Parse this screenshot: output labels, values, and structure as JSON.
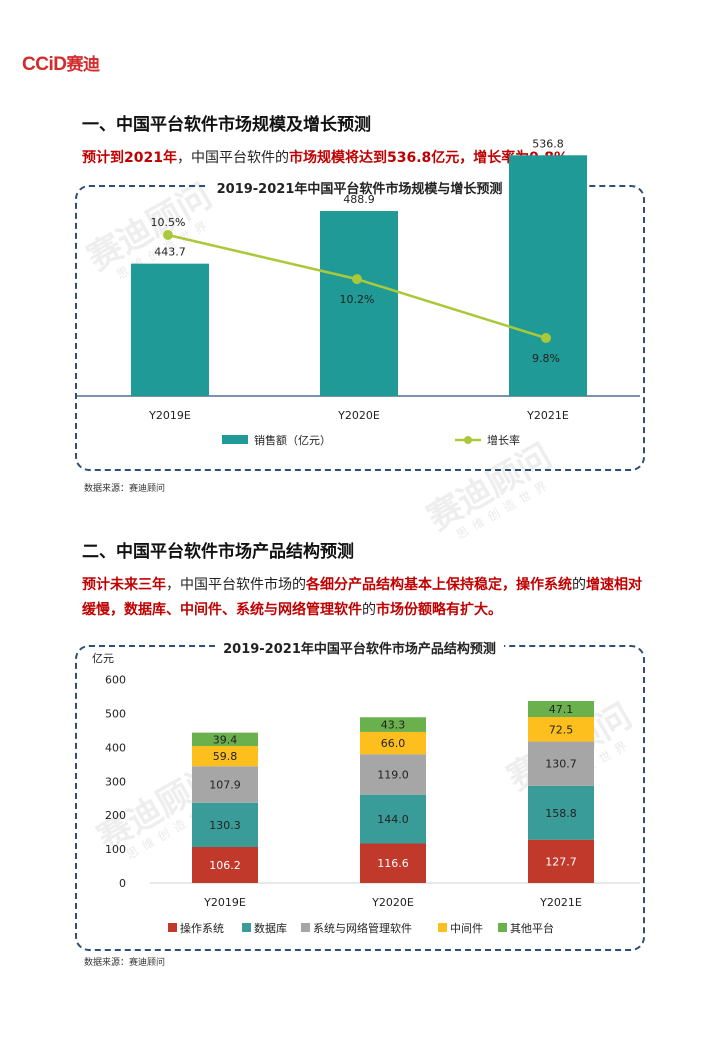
{
  "logo": {
    "latin": "CCiD",
    "cn": "赛迪"
  },
  "watermark": {
    "main": "赛迪顾问",
    "sub": "思维创造世界"
  },
  "section1": {
    "heading": "一、中国平台软件市场规模及增长预测",
    "summary": [
      {
        "t": "预计到2021年",
        "red": true
      },
      {
        "t": "，中国平台软件的",
        "red": false
      },
      {
        "t": "市场规模将达到536.8亿元，增长率为9.8%",
        "red": true
      },
      {
        "t": "。",
        "red": false
      }
    ],
    "source": "数据来源：赛迪顾问"
  },
  "section2": {
    "heading": "二、中国平台软件市场产品结构预测",
    "summary": [
      {
        "t": "预计未来三年",
        "red": true
      },
      {
        "t": "，中国平台软件市场的",
        "red": false
      },
      {
        "t": "各细分产品结构基本上保持稳定，操作系统",
        "red": true
      },
      {
        "t": "的",
        "red": false
      },
      {
        "t": "增速相对缓慢，数据库、中间件、系统与网络管理软件",
        "red": true
      },
      {
        "t": "的",
        "red": false
      },
      {
        "t": "市场份额略有扩大。",
        "red": true
      }
    ],
    "source": "数据来源：赛迪顾问"
  },
  "colors": {
    "teal": "#1f9a96",
    "lime": "#a9c93a",
    "os": "#c0392b",
    "db": "#3a9c98",
    "mgmt": "#a6a6a6",
    "mw": "#fcbf1e",
    "other": "#6ab04c"
  },
  "chart_data": [
    {
      "type": "bar",
      "title": "2019-2021年中国平台软件市场规模与增长预测",
      "categories": [
        "Y2019E",
        "Y2020E",
        "Y2021E"
      ],
      "series": [
        {
          "name": "销售额（亿元）",
          "type": "bar",
          "values": [
            443.7,
            488.9,
            536.8
          ],
          "value_labels": [
            "443.7",
            "488.9",
            "536.8"
          ]
        },
        {
          "name": "增长率",
          "type": "line",
          "values": [
            10.5,
            10.2,
            9.8
          ],
          "value_labels": [
            "10.5%",
            "10.2%",
            "9.8%"
          ]
        }
      ],
      "legend": "bottom"
    },
    {
      "type": "bar",
      "stacked": true,
      "title": "2019-2021年中国平台软件市场产品结构预测",
      "ylabel": "亿元",
      "ylim": [
        0,
        600
      ],
      "yticks": [
        "0",
        "100",
        "200",
        "300",
        "400",
        "500",
        "600"
      ],
      "categories": [
        "Y2019E",
        "Y2020E",
        "Y2021E"
      ],
      "series": [
        {
          "name": "操作系统",
          "values": [
            106.2,
            116.6,
            127.7
          ]
        },
        {
          "name": "数据库",
          "values": [
            130.3,
            144.0,
            158.8
          ]
        },
        {
          "name": "系统与网络管理软件",
          "values": [
            107.9,
            119.0,
            130.7
          ]
        },
        {
          "name": "中间件",
          "values": [
            59.8,
            66.0,
            72.5
          ]
        },
        {
          "name": "其他平台",
          "values": [
            39.4,
            43.3,
            47.1
          ]
        }
      ],
      "legend": "bottom"
    }
  ]
}
